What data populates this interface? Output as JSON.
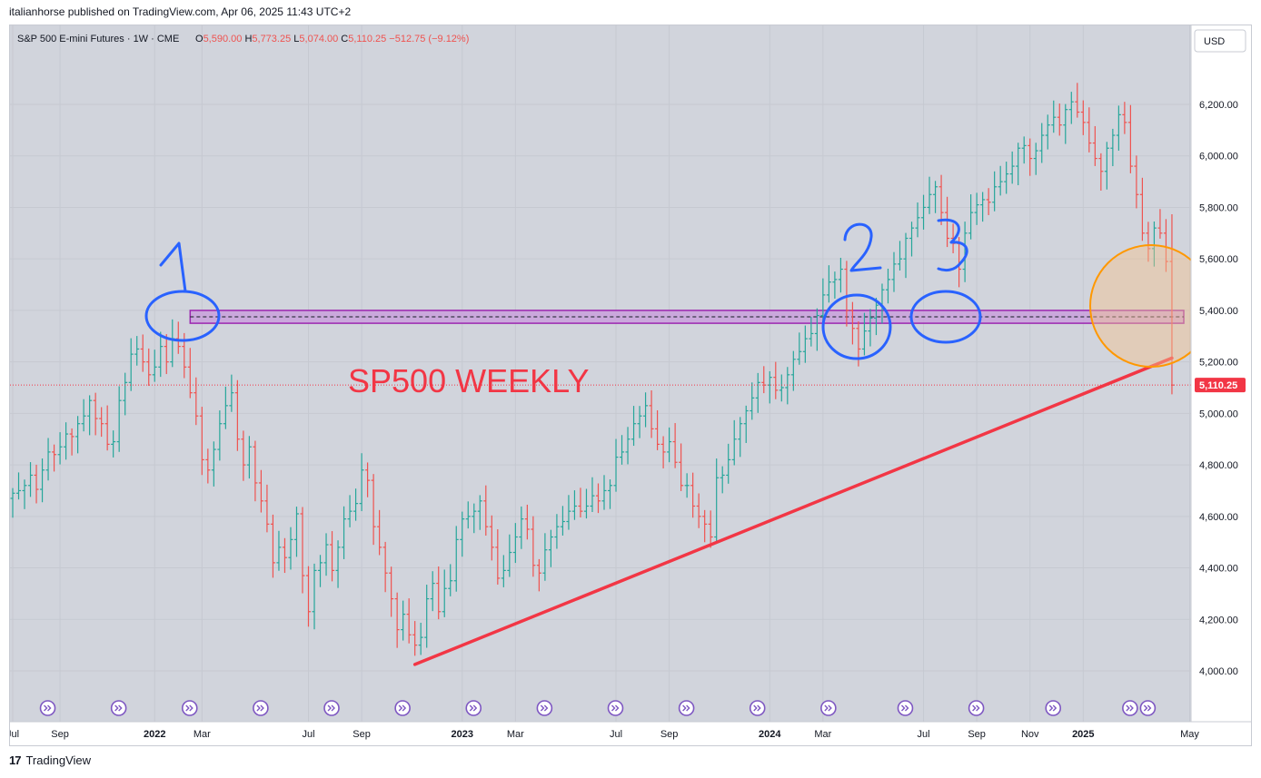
{
  "publish_line": "italianhorse published on TradingView.com, Apr 06, 2025 11:43 UTC+2",
  "header": {
    "symbol": "S&P 500 E-mini Futures · 1W · CME",
    "o_label": "O",
    "o_value": "5,590.00",
    "h_label": "H",
    "h_value": "5,773.25",
    "l_label": "L",
    "l_value": "5,074.00",
    "c_label": "C",
    "c_value": "5,110.25",
    "change": "−512.75 (−9.12%)"
  },
  "currency_button": "USD",
  "footer_brand": "TradingView",
  "colors": {
    "up": "#26a69a",
    "down": "#ef5350",
    "background": "#d1d4dc",
    "trendline": "#f23645",
    "zone_fill": "#c9a0dc",
    "zone_border": "#9c27b0",
    "circle_orange": "#ff9800",
    "annotation_blue": "#2962ff",
    "price_tag": "#f23645"
  },
  "chart_data": {
    "type": "ohlc_bar",
    "title": "SP500 WEEKLY",
    "y_ticks": [
      "6,200.00",
      "6,000.00",
      "5,800.00",
      "5,600.00",
      "5,400.00",
      "5,200.00",
      "5,000.00",
      "4,800.00",
      "4,600.00",
      "4,400.00",
      "4,200.00",
      "4,000.00"
    ],
    "y_tick_values": [
      6200,
      6000,
      5800,
      5600,
      5400,
      5200,
      5000,
      4800,
      4600,
      4400,
      4200,
      4000
    ],
    "ylim": [
      3780,
      6380
    ],
    "x_ticks": [
      {
        "label": "Jul",
        "bold": false,
        "week": 0
      },
      {
        "label": "Sep",
        "bold": false,
        "week": 8
      },
      {
        "label": "2022",
        "bold": true,
        "week": 24
      },
      {
        "label": "Mar",
        "bold": false,
        "week": 32
      },
      {
        "label": "Jul",
        "bold": false,
        "week": 50
      },
      {
        "label": "Sep",
        "bold": false,
        "week": 59
      },
      {
        "label": "2023",
        "bold": true,
        "week": 76
      },
      {
        "label": "Mar",
        "bold": false,
        "week": 85
      },
      {
        "label": "Jul",
        "bold": false,
        "week": 102
      },
      {
        "label": "Sep",
        "bold": false,
        "week": 111
      },
      {
        "label": "2024",
        "bold": true,
        "week": 128
      },
      {
        "label": "Mar",
        "bold": false,
        "week": 137
      },
      {
        "label": "Jul",
        "bold": false,
        "week": 154
      },
      {
        "label": "Sep",
        "bold": false,
        "week": 163
      },
      {
        "label": "Nov",
        "bold": false,
        "week": 172
      },
      {
        "label": "2025",
        "bold": true,
        "week": 181
      },
      {
        "label": "May",
        "bold": false,
        "week": 199
      }
    ],
    "current_price": 5110.25,
    "current_price_label": "5,110.25",
    "support_zone": [
      5350,
      5400
    ],
    "support_mid": 5375,
    "trendline": [
      {
        "week": 68,
        "price": 4025
      },
      {
        "week": 196,
        "price": 5215
      }
    ],
    "annotations": [
      "1",
      "2",
      "3"
    ],
    "event_markers_weeks": [
      3,
      15,
      27,
      39,
      51,
      63,
      75,
      87,
      99,
      111,
      123,
      135,
      148,
      160,
      173,
      186,
      189
    ],
    "closes": [
      4690,
      4700,
      4720,
      4760,
      4705,
      4780,
      4850,
      4840,
      4870,
      4920,
      4910,
      4960,
      4990,
      5050,
      4980,
      4960,
      4880,
      4890,
      5050,
      5120,
      5230,
      5250,
      5200,
      5150,
      5180,
      5260,
      5200,
      5290,
      5260,
      5180,
      5080,
      4990,
      4820,
      4780,
      4860,
      4960,
      5030,
      5080,
      4900,
      4800,
      4870,
      4730,
      4660,
      4570,
      4420,
      4480,
      4440,
      4510,
      4610,
      4370,
      4230,
      4390,
      4420,
      4490,
      4390,
      4480,
      4590,
      4620,
      4650,
      4780,
      4740,
      4560,
      4480,
      4380,
      4280,
      4160,
      4220,
      4140,
      4100,
      4130,
      4280,
      4340,
      4230,
      4320,
      4350,
      4510,
      4590,
      4600,
      4620,
      4660,
      4560,
      4480,
      4360,
      4390,
      4460,
      4520,
      4590,
      4550,
      4410,
      4380,
      4470,
      4520,
      4560,
      4580,
      4620,
      4640,
      4620,
      4640,
      4680,
      4660,
      4700,
      4720,
      4830,
      4850,
      4900,
      4960,
      4990,
      5030,
      4940,
      4880,
      4850,
      4890,
      4810,
      4720,
      4720,
      4640,
      4600,
      4570,
      4520,
      4750,
      4760,
      4820,
      4900,
      4960,
      5010,
      5060,
      5120,
      5110,
      5140,
      5090,
      5100,
      5150,
      5210,
      5240,
      5290,
      5310,
      5380,
      5460,
      5510,
      5520,
      5560,
      5400,
      5330,
      5250,
      5320,
      5370,
      5420,
      5480,
      5520,
      5580,
      5600,
      5680,
      5720,
      5760,
      5800,
      5850,
      5880,
      5780,
      5680,
      5660,
      5560,
      5700,
      5780,
      5810,
      5830,
      5820,
      5880,
      5900,
      5930,
      5960,
      6030,
      6040,
      5990,
      6020,
      6080,
      6120,
      6150,
      6120,
      6180,
      6210,
      6170,
      6130,
      6050,
      5990,
      5940,
      6030,
      6080,
      6160,
      6130,
      5960,
      5850,
      5700,
      5640,
      5720,
      5700,
      5590,
      5110
    ]
  }
}
